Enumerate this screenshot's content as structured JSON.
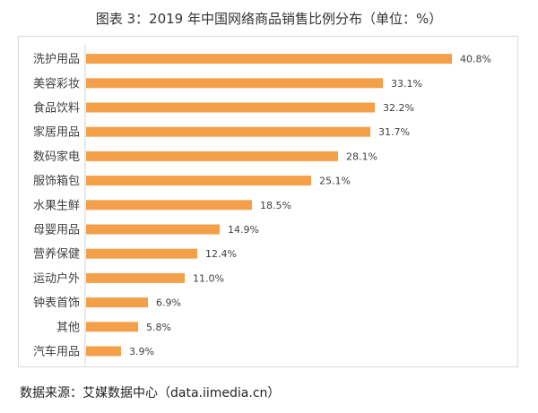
{
  "title": "图表 3：2019 年中国网络商品销售比例分布（单位：%）",
  "source": "数据来源：艾媒数据中心（data.iimedia.cn）",
  "colors": {
    "bar": "#f4a04b",
    "axis": "#d0d0d0",
    "text": "#404040"
  },
  "chart_data": {
    "type": "bar",
    "orientation": "horizontal",
    "categories": [
      "洗护用品",
      "美容彩妆",
      "食品饮料",
      "家居用品",
      "数码家电",
      "服饰箱包",
      "水果生鲜",
      "母婴用品",
      "营养保健",
      "运动户外",
      "钟表首饰",
      "其他",
      "汽车用品"
    ],
    "values": [
      40.8,
      33.1,
      32.2,
      31.7,
      28.1,
      25.1,
      18.5,
      14.9,
      12.4,
      11.0,
      6.9,
      5.8,
      3.9
    ],
    "value_labels": [
      "40.8%",
      "33.1%",
      "32.2%",
      "31.7%",
      "28.1%",
      "25.1%",
      "18.5%",
      "14.9%",
      "12.4%",
      "11.0%",
      "6.9%",
      "5.8%",
      "3.9%"
    ],
    "xlim": [
      0,
      43
    ],
    "grid": false,
    "legend": "none"
  }
}
